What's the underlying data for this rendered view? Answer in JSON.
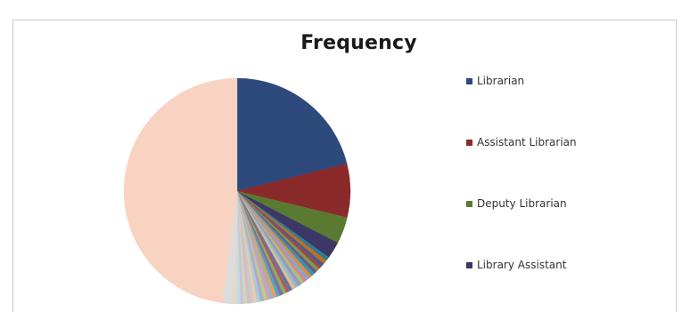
{
  "chart_data": {
    "type": "pie",
    "title": "Frequency",
    "legend_position": "right",
    "categories": [
      "Librarian",
      "Assistant Librarian",
      "Deputy Librarian",
      "Library Assistant"
    ],
    "values": [
      22,
      8,
      4,
      2.5
    ],
    "colors": [
      "#2e4a7d",
      "#8b2a2a",
      "#5a7a32",
      "#3c3766"
    ],
    "other_slices": {
      "values": [
        0.6,
        0.6,
        0.5,
        0.5,
        0.5,
        0.5,
        0.5,
        0.5,
        0.5,
        0.5,
        0.5,
        0.5,
        0.5,
        0.5,
        0.5,
        0.5,
        0.5,
        0.5,
        0.5,
        0.5,
        0.5,
        0.5,
        0.5,
        0.5,
        0.5,
        0.5,
        0.5,
        0.5,
        0.5,
        0.5,
        0.5,
        0.5,
        1.6,
        50
      ],
      "colors": [
        "#2f7d93",
        "#c66a1e",
        "#3e5f94",
        "#a24543",
        "#7c9a4b",
        "#6a5a8c",
        "#3e93a8",
        "#d98c40",
        "#8fa3c4",
        "#c98d8c",
        "#a8bd86",
        "#9e94b8",
        "#8ac0cd",
        "#e8b98c",
        "#5a76a8",
        "#b35a58",
        "#90ab60",
        "#7d6ea0",
        "#55a5b8",
        "#e0a060",
        "#9fb0cc",
        "#d4a3a1",
        "#b9cb9b",
        "#b0a8c9",
        "#a3ced9",
        "#efc9a3",
        "#c3c9d9",
        "#d9bcbb",
        "#cdd8bc",
        "#c9c3d8",
        "#bedde5",
        "#e9d6c4",
        "#dcdcdc",
        "#f8d3c2"
      ]
    }
  }
}
